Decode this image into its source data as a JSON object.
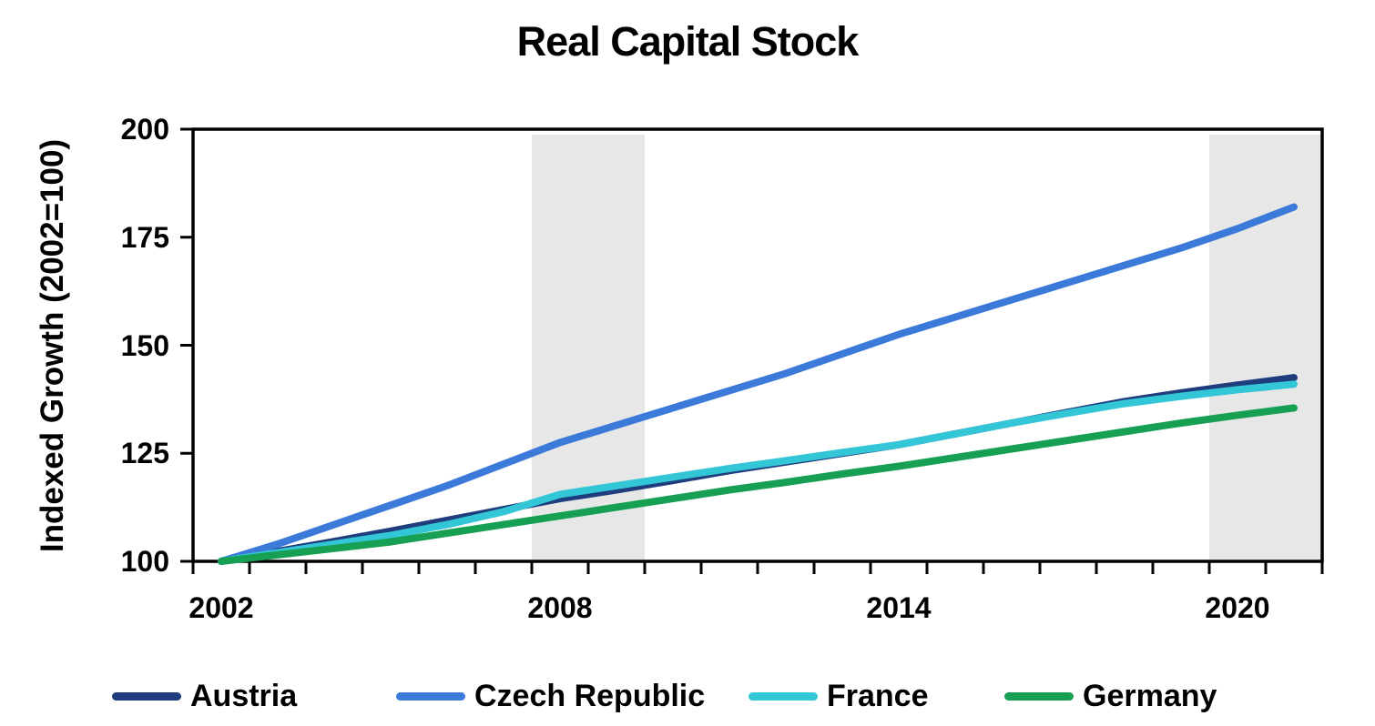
{
  "chart_data": {
    "type": "line",
    "title": "Real Capital Stock",
    "ylabel": "Indexed Growth (2002=100)",
    "xlabel": "",
    "x": [
      2002,
      2003,
      2004,
      2005,
      2006,
      2007,
      2008,
      2009,
      2010,
      2011,
      2012,
      2013,
      2014,
      2015,
      2016,
      2017,
      2018,
      2019,
      2020,
      2021
    ],
    "x_tick_labels": [
      "2002",
      "2008",
      "2014",
      "2020"
    ],
    "ylim": [
      100,
      200
    ],
    "yticks": [
      100,
      125,
      150,
      175,
      200
    ],
    "ytick_labels": [
      "100",
      "125",
      "150",
      "175",
      "200"
    ],
    "grid": "off",
    "legend_position": "bottom",
    "plot_background": "#ffffff",
    "axis_color": "#000000",
    "shaded_regions": [
      {
        "name": "recession-2008-2009",
        "from_year": 2008,
        "to_year": 2009,
        "color": "#E7E7E7"
      },
      {
        "name": "recession-2020-2021",
        "from_year": 2020,
        "to_year": 2021,
        "color": "#E7E7E7"
      }
    ],
    "series": [
      {
        "name": "Austria",
        "color": "#1F3C7D",
        "values": [
          100,
          102.3,
          104.6,
          107,
          109.5,
          112,
          114.5,
          116.5,
          118.7,
          121,
          123,
          125,
          127,
          129.5,
          132,
          134.5,
          137,
          139,
          140.8,
          142.5
        ]
      },
      {
        "name": "Czech Republic",
        "color": "#3B7AD9",
        "values": [
          100,
          104,
          108.5,
          113,
          117.5,
          122.5,
          127.5,
          131.5,
          135.5,
          139.5,
          143.5,
          148,
          152.5,
          156.5,
          160.5,
          164.5,
          168.5,
          172.5,
          177,
          182
        ]
      },
      {
        "name": "France",
        "color": "#33C6D6",
        "values": [
          100,
          102,
          104,
          106,
          108.5,
          111.5,
          115.5,
          117.5,
          119.5,
          121.5,
          123.3,
          125.2,
          127,
          129.5,
          132,
          134.3,
          136.5,
          138.2,
          139.7,
          141
        ]
      },
      {
        "name": "Germany",
        "color": "#17A054",
        "values": [
          100,
          101.5,
          103,
          104.5,
          106.5,
          108.5,
          110.5,
          112.5,
          114.5,
          116.5,
          118.3,
          120.2,
          122,
          124,
          126,
          128,
          130,
          132,
          133.8,
          135.5
        ]
      }
    ]
  },
  "legend": {
    "items": [
      {
        "label": "Austria"
      },
      {
        "label": "Czech Republic"
      },
      {
        "label": "France"
      },
      {
        "label": "Germany"
      }
    ]
  }
}
